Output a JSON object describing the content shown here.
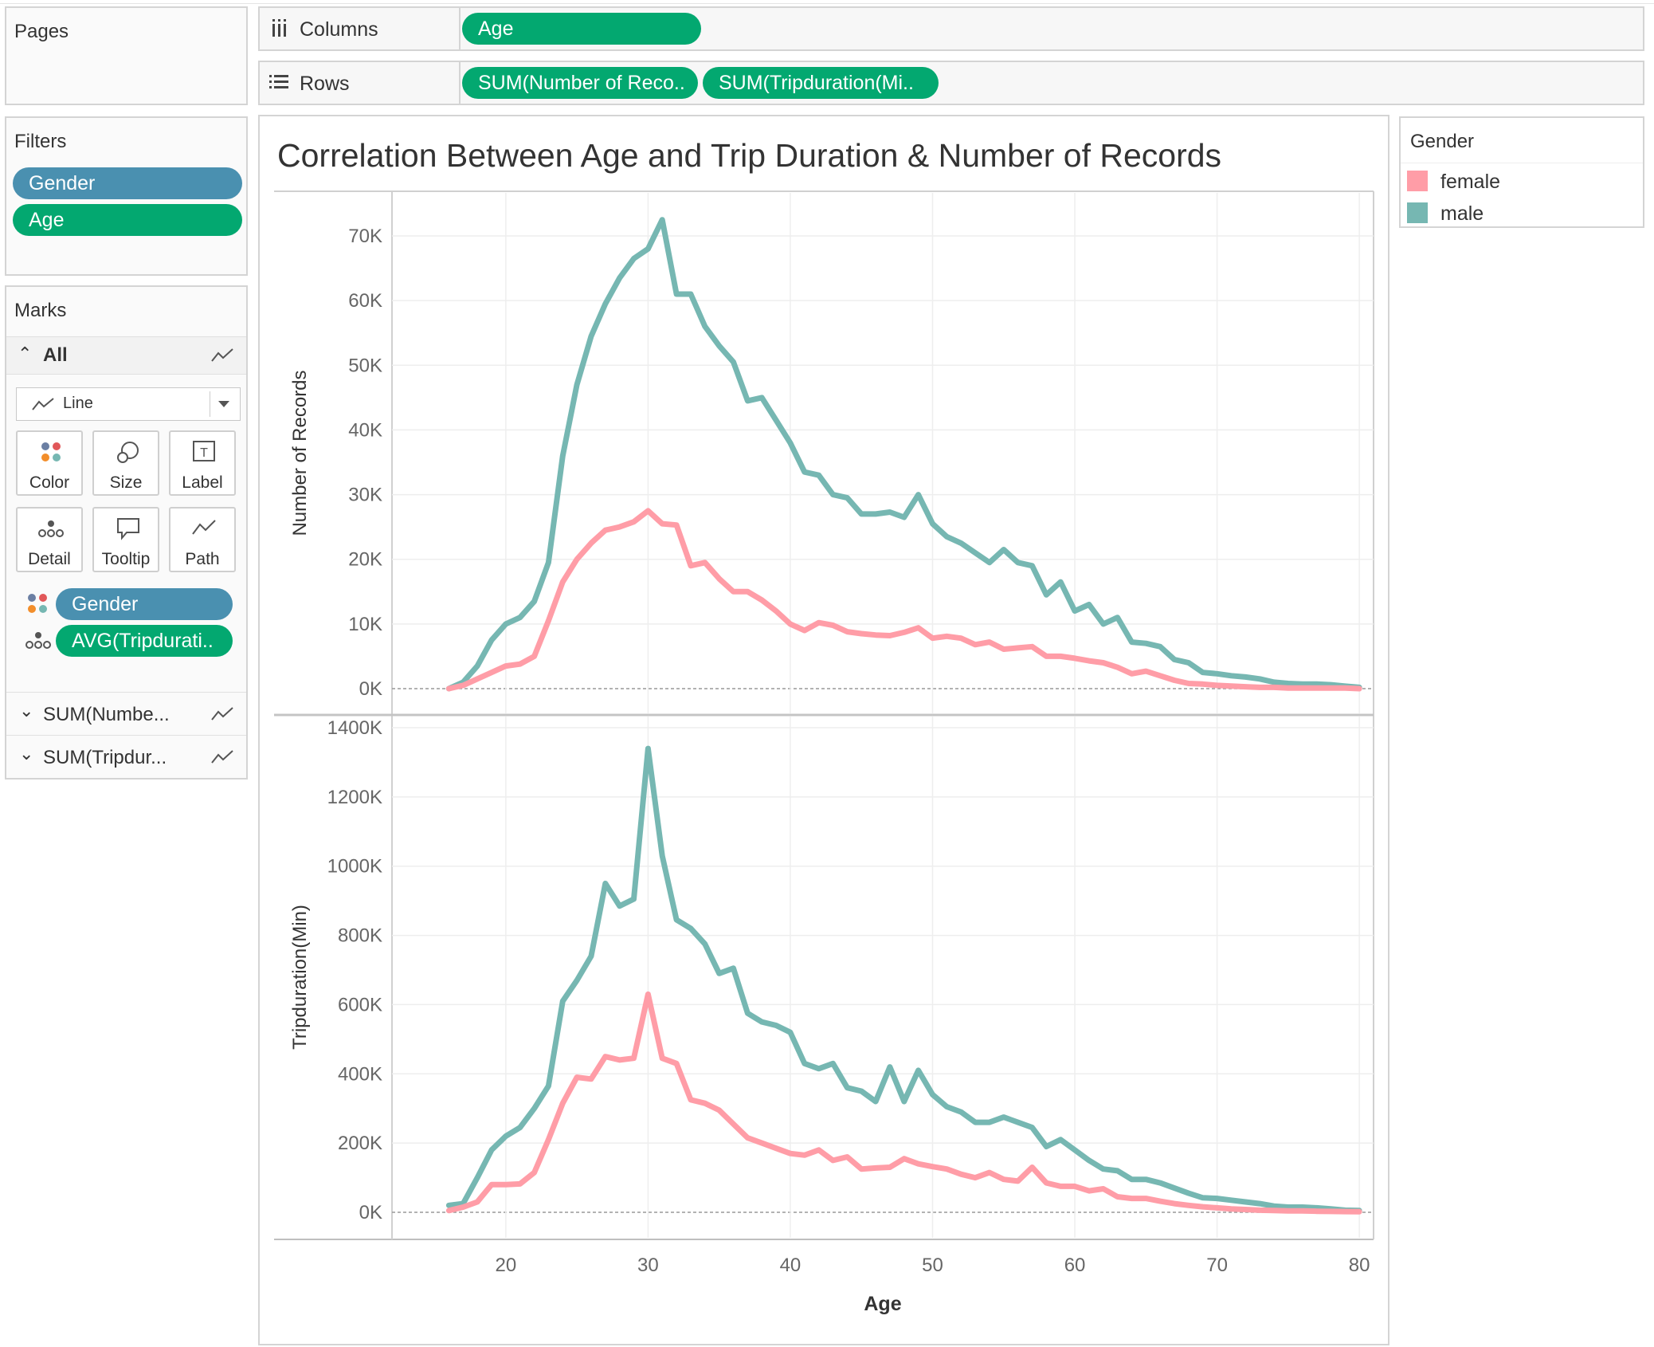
{
  "pages": {
    "title": "Pages"
  },
  "shelves": {
    "columns": {
      "label": "Columns",
      "pills": [
        "Age"
      ]
    },
    "rows": {
      "label": "Rows",
      "pills": [
        "SUM(Number of Reco..",
        "SUM(Tripduration(Mi.."
      ]
    }
  },
  "filters": {
    "title": "Filters",
    "pills": [
      "Gender",
      "Age"
    ]
  },
  "marks": {
    "title": "Marks",
    "all_label": "All",
    "mark_type": "Line",
    "cards": [
      "Color",
      "Size",
      "Label",
      "Detail",
      "Tooltip",
      "Path"
    ],
    "fields": [
      "Gender",
      "AVG(Tripdurati.."
    ],
    "sub_rows": [
      "SUM(Numbe...",
      "SUM(Tripdur..."
    ]
  },
  "legend": {
    "title": "Gender",
    "items": [
      {
        "label": "female",
        "color": "#ff9da7"
      },
      {
        "label": "male",
        "color": "#76b7b2"
      }
    ]
  },
  "colors": {
    "female": "#ff9da7",
    "male": "#76b7b2",
    "green_pill": "#03a870",
    "blue_pill": "#4a90b0"
  },
  "chart_data": [
    {
      "type": "line",
      "title": "Correlation Between Age and Trip Duration & Number of Records",
      "xlabel": "Age",
      "ylabel": "Number of Records",
      "xlim": [
        12,
        81
      ],
      "ylim": [
        0,
        75000
      ],
      "x_ticks": [
        "20",
        "30",
        "40",
        "50",
        "60",
        "70",
        "80"
      ],
      "y_ticks": [
        "0K",
        "10K",
        "20K",
        "30K",
        "40K",
        "50K",
        "60K",
        "70K"
      ],
      "x": [
        16,
        17,
        18,
        19,
        20,
        21,
        22,
        23,
        24,
        25,
        26,
        27,
        28,
        29,
        30,
        31,
        32,
        33,
        34,
        35,
        36,
        37,
        38,
        39,
        40,
        41,
        42,
        43,
        44,
        45,
        46,
        47,
        48,
        49,
        50,
        51,
        52,
        53,
        54,
        55,
        56,
        57,
        58,
        59,
        60,
        61,
        62,
        63,
        64,
        65,
        66,
        67,
        68,
        69,
        70,
        71,
        72,
        73,
        74,
        75,
        76,
        77,
        78,
        79,
        80
      ],
      "series": [
        {
          "name": "male",
          "values": [
            0,
            1000,
            3500,
            7500,
            10000,
            11000,
            13500,
            19500,
            36000,
            47000,
            54500,
            59500,
            63500,
            66500,
            68000,
            72500,
            61000,
            61000,
            56000,
            53000,
            50500,
            44500,
            45000,
            41500,
            38000,
            33500,
            33000,
            30000,
            29500,
            27000,
            27000,
            27300,
            26500,
            30000,
            25500,
            23500,
            22500,
            21000,
            19500,
            21500,
            19500,
            19000,
            14500,
            16500,
            12000,
            13000,
            10000,
            11000,
            7200,
            7000,
            6500,
            4500,
            4000,
            2500,
            2300,
            2000,
            1800,
            1500,
            1000,
            800,
            700,
            700,
            600,
            400,
            200
          ]
        },
        {
          "name": "female",
          "values": [
            0,
            500,
            1500,
            2500,
            3500,
            3800,
            5000,
            10500,
            16500,
            20000,
            22500,
            24500,
            25000,
            25800,
            27500,
            25500,
            25300,
            19000,
            19500,
            17000,
            15000,
            15000,
            13700,
            12000,
            10000,
            9000,
            10200,
            9800,
            8800,
            8500,
            8300,
            8200,
            8700,
            9400,
            7800,
            8100,
            7800,
            6800,
            7200,
            6100,
            6300,
            6500,
            5000,
            5000,
            4700,
            4300,
            4000,
            3300,
            2300,
            2700,
            2000,
            1300,
            800,
            700,
            500,
            400,
            300,
            200,
            200,
            100,
            100,
            100,
            100,
            100,
            0
          ]
        }
      ]
    },
    {
      "type": "line",
      "xlabel": "Age",
      "ylabel": "Tripduration(Min)",
      "xlim": [
        12,
        81
      ],
      "ylim": [
        0,
        1400000
      ],
      "x_ticks": [
        "20",
        "30",
        "40",
        "50",
        "60",
        "70",
        "80"
      ],
      "y_ticks": [
        "0K",
        "200K",
        "400K",
        "600K",
        "800K",
        "1000K",
        "1200K",
        "1400K"
      ],
      "x": [
        16,
        17,
        18,
        19,
        20,
        21,
        22,
        23,
        24,
        25,
        26,
        27,
        28,
        29,
        30,
        31,
        32,
        33,
        34,
        35,
        36,
        37,
        38,
        39,
        40,
        41,
        42,
        43,
        44,
        45,
        46,
        47,
        48,
        49,
        50,
        51,
        52,
        53,
        54,
        55,
        56,
        57,
        58,
        59,
        60,
        61,
        62,
        63,
        64,
        65,
        66,
        67,
        68,
        69,
        70,
        71,
        72,
        73,
        74,
        75,
        76,
        77,
        78,
        79,
        80
      ],
      "series": [
        {
          "name": "male",
          "values": [
            20000,
            25000,
            100000,
            180000,
            220000,
            245000,
            300000,
            365000,
            610000,
            670000,
            740000,
            950000,
            885000,
            905000,
            1340000,
            1030000,
            845000,
            820000,
            775000,
            690000,
            705000,
            575000,
            550000,
            540000,
            520000,
            430000,
            415000,
            430000,
            360000,
            350000,
            320000,
            420000,
            320000,
            410000,
            340000,
            305000,
            290000,
            260000,
            260000,
            275000,
            260000,
            245000,
            190000,
            210000,
            180000,
            150000,
            125000,
            120000,
            95000,
            95000,
            85000,
            70000,
            55000,
            42000,
            40000,
            35000,
            30000,
            25000,
            18000,
            15000,
            15000,
            13000,
            10000,
            6000,
            5000
          ]
        },
        {
          "name": "female",
          "values": [
            5000,
            15000,
            30000,
            80000,
            80000,
            82000,
            115000,
            210000,
            315000,
            390000,
            385000,
            450000,
            440000,
            445000,
            630000,
            445000,
            430000,
            325000,
            315000,
            295000,
            255000,
            215000,
            200000,
            185000,
            170000,
            165000,
            180000,
            150000,
            160000,
            125000,
            128000,
            130000,
            155000,
            140000,
            132000,
            125000,
            110000,
            100000,
            115000,
            95000,
            90000,
            130000,
            85000,
            75000,
            75000,
            62000,
            68000,
            45000,
            40000,
            40000,
            32000,
            25000,
            20000,
            16000,
            13000,
            10000,
            8000,
            6000,
            5000,
            4000,
            4000,
            3000,
            2500,
            2000,
            1500
          ]
        }
      ]
    }
  ]
}
